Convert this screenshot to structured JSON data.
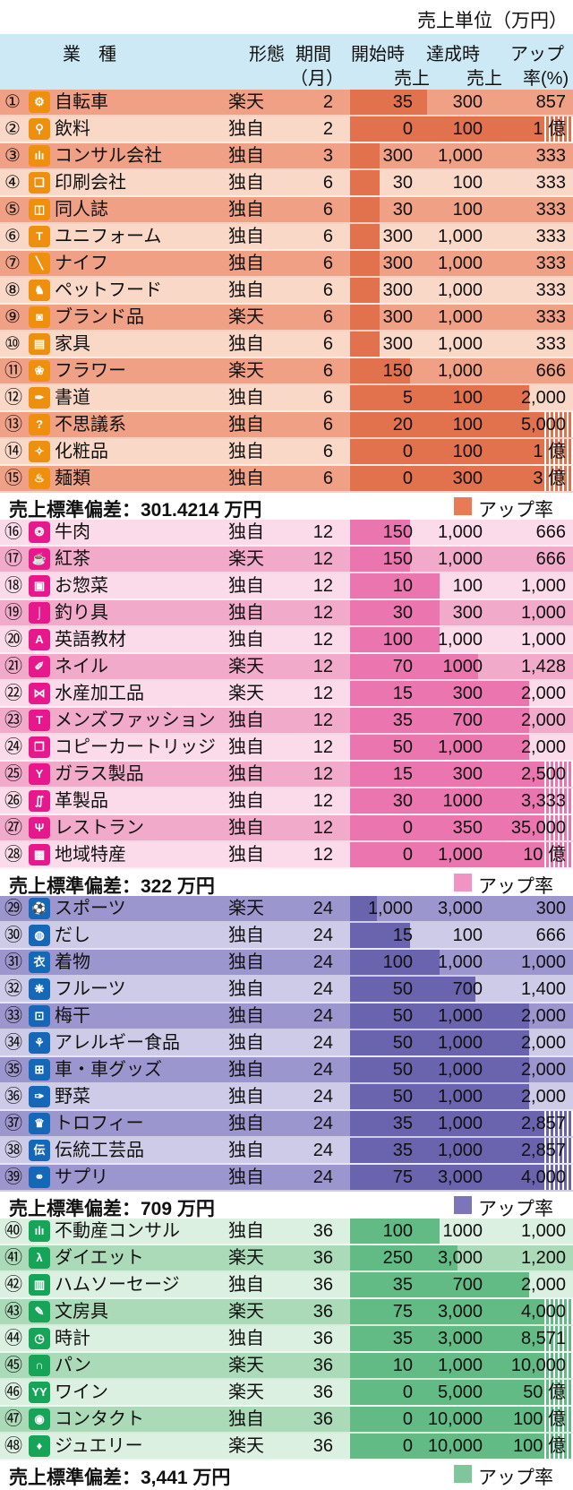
{
  "header": {
    "industry": "業　種",
    "format": "形態",
    "period_l1": "期間",
    "period_l2": "（月）",
    "start_l1": "開始時",
    "start_l2": "売上",
    "achieved_l1": "達成時",
    "achieved_l2": "売上",
    "rate_l1": "アップ",
    "rate_l2": "率(%)"
  },
  "chart_data": {
    "type": "table",
    "unit_note": "売上単位（万円）",
    "legend_label": "アップ率",
    "columns": [
      "業種",
      "形態",
      "期間（月）",
      "開始時売上",
      "達成時売上",
      "アップ率(%)"
    ],
    "groups": [
      {
        "period_months": "2-6",
        "colors": {
          "row_dark": "#EFA085",
          "row_light": "#FAD8C7",
          "bar": "#E2714E",
          "icon": "#EE8F0E",
          "legend": "#E87B55"
        },
        "stddev": "売上標準偏差：301.4214 万円",
        "rows": [
          {
            "no": "①",
            "icon": "bicycle-icon",
            "glyph": "⚙",
            "industry": "自転車",
            "format": "楽天",
            "period": "2",
            "start": "35",
            "achieved": "300",
            "rate": "857",
            "rate_num": 857
          },
          {
            "no": "②",
            "icon": "drink-glass-icon",
            "glyph": "⚲",
            "industry": "飲料",
            "format": "独自",
            "period": "2",
            "start": "0",
            "achieved": "100",
            "rate": "1 億",
            "rate_num": 100000000
          },
          {
            "no": "③",
            "icon": "bar-chart-icon",
            "glyph": "ılı",
            "industry": "コンサル会社",
            "format": "独自",
            "period": "3",
            "start": "300",
            "achieved": "1,000",
            "rate": "333",
            "rate_num": 333
          },
          {
            "no": "④",
            "icon": "printer-icon",
            "glyph": "❏",
            "industry": "印刷会社",
            "format": "独自",
            "period": "6",
            "start": "30",
            "achieved": "100",
            "rate": "333",
            "rate_num": 333
          },
          {
            "no": "⑤",
            "icon": "book-icon",
            "glyph": "◫",
            "industry": "同人誌",
            "format": "独自",
            "period": "6",
            "start": "30",
            "achieved": "100",
            "rate": "333",
            "rate_num": 333
          },
          {
            "no": "⑥",
            "icon": "shirt-icon",
            "glyph": "T",
            "industry": "ユニフォーム",
            "format": "独自",
            "period": "6",
            "start": "300",
            "achieved": "1,000",
            "rate": "333",
            "rate_num": 333
          },
          {
            "no": "⑦",
            "icon": "knife-icon",
            "glyph": "╲",
            "industry": "ナイフ",
            "format": "独自",
            "period": "6",
            "start": "300",
            "achieved": "1,000",
            "rate": "333",
            "rate_num": 333
          },
          {
            "no": "⑧",
            "icon": "dog-icon",
            "glyph": "♞",
            "industry": "ペットフード",
            "format": "独自",
            "period": "6",
            "start": "300",
            "achieved": "1,000",
            "rate": "333",
            "rate_num": 333
          },
          {
            "no": "⑨",
            "icon": "handbag-icon",
            "glyph": "◙",
            "industry": "ブランド品",
            "format": "楽天",
            "period": "6",
            "start": "300",
            "achieved": "1,000",
            "rate": "333",
            "rate_num": 333
          },
          {
            "no": "⑩",
            "icon": "furniture-icon",
            "glyph": "▤",
            "industry": "家具",
            "format": "独自",
            "period": "6",
            "start": "300",
            "achieved": "1,000",
            "rate": "333",
            "rate_num": 333
          },
          {
            "no": "⑪",
            "icon": "flower-icon",
            "glyph": "❀",
            "industry": "フラワー",
            "format": "楽天",
            "period": "6",
            "start": "150",
            "achieved": "1,000",
            "rate": "666",
            "rate_num": 666
          },
          {
            "no": "⑫",
            "icon": "brush-icon",
            "glyph": "✒",
            "industry": "書道",
            "format": "独自",
            "period": "6",
            "start": "5",
            "achieved": "100",
            "rate": "2,000",
            "rate_num": 2000
          },
          {
            "no": "⑬",
            "icon": "question-icon",
            "glyph": "?",
            "industry": "不思議系",
            "format": "独自",
            "period": "6",
            "start": "20",
            "achieved": "100",
            "rate": "5,000",
            "rate_num": 5000
          },
          {
            "no": "⑭",
            "icon": "cosmetics-icon",
            "glyph": "✧",
            "industry": "化粧品",
            "format": "独自",
            "period": "6",
            "start": "0",
            "achieved": "100",
            "rate": "1 億",
            "rate_num": 100000000
          },
          {
            "no": "⑮",
            "icon": "noodles-icon",
            "glyph": "♨",
            "industry": "麺類",
            "format": "独自",
            "period": "6",
            "start": "0",
            "achieved": "300",
            "rate": "3 億",
            "rate_num": 300000000
          }
        ]
      },
      {
        "period_months": "12",
        "colors": {
          "row_dark": "#F2AACB",
          "row_light": "#FBDBE9",
          "bar": "#EB76AF",
          "icon": "#E7188B",
          "legend": "#F193C3"
        },
        "stddev": "売上標準偏差：322 万円",
        "rows": [
          {
            "no": "⑯",
            "icon": "meat-icon",
            "glyph": "❂",
            "industry": "牛肉",
            "format": "独自",
            "period": "12",
            "start": "150",
            "achieved": "1,000",
            "rate": "666",
            "rate_num": 666
          },
          {
            "no": "⑰",
            "icon": "tea-cup-icon",
            "glyph": "☕",
            "industry": "紅茶",
            "format": "楽天",
            "period": "12",
            "start": "150",
            "achieved": "1,000",
            "rate": "666",
            "rate_num": 666
          },
          {
            "no": "⑱",
            "icon": "dish-icon",
            "glyph": "▣",
            "industry": "お惣菜",
            "format": "独自",
            "period": "12",
            "start": "10",
            "achieved": "100",
            "rate": "1,000",
            "rate_num": 1000
          },
          {
            "no": "⑲",
            "icon": "fish-hook-icon",
            "glyph": "⌡",
            "industry": "釣り具",
            "format": "独自",
            "period": "12",
            "start": "30",
            "achieved": "300",
            "rate": "1,000",
            "rate_num": 1000
          },
          {
            "no": "⑳",
            "icon": "letter-a-icon",
            "glyph": "A",
            "industry": "英語教材",
            "format": "独自",
            "period": "12",
            "start": "100",
            "achieved": "1,000",
            "rate": "1,000",
            "rate_num": 1000
          },
          {
            "no": "㉑",
            "icon": "nail-icon",
            "glyph": "✐",
            "industry": "ネイル",
            "format": "楽天",
            "period": "12",
            "start": "70",
            "achieved": "1000",
            "rate": "1,428",
            "rate_num": 1428
          },
          {
            "no": "㉒",
            "icon": "fish-icon",
            "glyph": "⋈",
            "industry": "水産加工品",
            "format": "楽天",
            "period": "12",
            "start": "15",
            "achieved": "300",
            "rate": "2,000",
            "rate_num": 2000
          },
          {
            "no": "㉓",
            "icon": "menswear-icon",
            "glyph": "T",
            "industry": "メンズファッション",
            "format": "独自",
            "period": "12",
            "start": "35",
            "achieved": "700",
            "rate": "2,000",
            "rate_num": 2000
          },
          {
            "no": "㉔",
            "icon": "copy-cartridge-icon",
            "glyph": "❐",
            "industry": "コピーカートリッジ",
            "format": "独自",
            "period": "12",
            "start": "50",
            "achieved": "1,000",
            "rate": "2,000",
            "rate_num": 2000
          },
          {
            "no": "㉕",
            "icon": "glass-icon",
            "glyph": "Y",
            "industry": "ガラス製品",
            "format": "独自",
            "period": "12",
            "start": "15",
            "achieved": "300",
            "rate": "2,500",
            "rate_num": 2500
          },
          {
            "no": "㉖",
            "icon": "shoes-icon",
            "glyph": "∬",
            "industry": "革製品",
            "format": "独自",
            "period": "12",
            "start": "30",
            "achieved": "1000",
            "rate": "3,333",
            "rate_num": 3333
          },
          {
            "no": "㉗",
            "icon": "restaurant-icon",
            "glyph": "Ψ",
            "industry": "レストラン",
            "format": "独自",
            "period": "12",
            "start": "0",
            "achieved": "350",
            "rate": "35,000",
            "rate_num": 35000
          },
          {
            "no": "㉘",
            "icon": "local-specialty-icon",
            "glyph": "▩",
            "industry": "地域特産",
            "format": "独自",
            "period": "12",
            "start": "0",
            "achieved": "1,000",
            "rate": "10 億",
            "rate_num": 1000000000
          }
        ]
      },
      {
        "period_months": "24",
        "colors": {
          "row_dark": "#9C96CE",
          "row_light": "#CECBE8",
          "bar": "#6A63AD",
          "icon": "#1567B7",
          "legend": "#7C75BA"
        },
        "stddev": "売上標準偏差：709 万円",
        "rows": [
          {
            "no": "㉙",
            "icon": "soccer-ball-icon",
            "glyph": "⚽",
            "industry": "スポーツ",
            "format": "楽天",
            "period": "24",
            "start": "1,000",
            "achieved": "3,000",
            "rate": "300",
            "rate_num": 300
          },
          {
            "no": "㉚",
            "icon": "pot-icon",
            "glyph": "◍",
            "industry": "だし",
            "format": "独自",
            "period": "24",
            "start": "15",
            "achieved": "100",
            "rate": "666",
            "rate_num": 666
          },
          {
            "no": "㉛",
            "icon": "kimono-icon",
            "glyph": "衣",
            "industry": "着物",
            "format": "独自",
            "period": "24",
            "start": "100",
            "achieved": "1,000",
            "rate": "1,000",
            "rate_num": 1000
          },
          {
            "no": "㉜",
            "icon": "grapes-icon",
            "glyph": "❋",
            "industry": "フルーツ",
            "format": "独自",
            "period": "24",
            "start": "50",
            "achieved": "700",
            "rate": "1,400",
            "rate_num": 1400
          },
          {
            "no": "㉝",
            "icon": "jar-icon",
            "glyph": "⊡",
            "industry": "梅干",
            "format": "独自",
            "period": "24",
            "start": "50",
            "achieved": "1,000",
            "rate": "2,000",
            "rate_num": 2000
          },
          {
            "no": "㉞",
            "icon": "wheat-icon",
            "glyph": "⚘",
            "industry": "アレルギー食品",
            "format": "独自",
            "period": "24",
            "start": "50",
            "achieved": "1,000",
            "rate": "2,000",
            "rate_num": 2000
          },
          {
            "no": "㉟",
            "icon": "car-icon",
            "glyph": "⊞",
            "industry": "車・車グッズ",
            "format": "独自",
            "period": "24",
            "start": "50",
            "achieved": "1,000",
            "rate": "2,000",
            "rate_num": 2000
          },
          {
            "no": "㊱",
            "icon": "carrot-icon",
            "glyph": "✑",
            "industry": "野菜",
            "format": "独自",
            "period": "24",
            "start": "50",
            "achieved": "1,000",
            "rate": "2,000",
            "rate_num": 2000
          },
          {
            "no": "㊲",
            "icon": "trophy-icon",
            "glyph": "♛",
            "industry": "トロフィー",
            "format": "独自",
            "period": "24",
            "start": "35",
            "achieved": "1,000",
            "rate": "2,857",
            "rate_num": 2857
          },
          {
            "no": "㊳",
            "icon": "traditional-craft-icon",
            "glyph": "伝",
            "industry": "伝統工芸品",
            "format": "独自",
            "period": "24",
            "start": "35",
            "achieved": "1,000",
            "rate": "2,857",
            "rate_num": 2857
          },
          {
            "no": "㊴",
            "icon": "pills-icon",
            "glyph": "⚭",
            "industry": "サプリ",
            "format": "独自",
            "period": "24",
            "start": "75",
            "achieved": "3,000",
            "rate": "4,000",
            "rate_num": 4000
          }
        ]
      },
      {
        "period_months": "36",
        "colors": {
          "row_dark": "#AADAB8",
          "row_light": "#DBF0E1",
          "bar": "#62BA85",
          "icon": "#16A458",
          "legend": "#7FC79B"
        },
        "stddev": "売上標準偏差：3,441 万円",
        "rows": [
          {
            "no": "㊵",
            "icon": "bar-chart-icon",
            "glyph": "ılı",
            "industry": "不動産コンサル",
            "format": "独自",
            "period": "36",
            "start": "100",
            "achieved": "1000",
            "rate": "1,000",
            "rate_num": 1000
          },
          {
            "no": "㊶",
            "icon": "runner-icon",
            "glyph": "λ",
            "industry": "ダイエット",
            "format": "楽天",
            "period": "36",
            "start": "250",
            "achieved": "3,000",
            "rate": "1,200",
            "rate_num": 1200
          },
          {
            "no": "㊷",
            "icon": "ham-icon",
            "glyph": "▥",
            "industry": "ハムソーセージ",
            "format": "独自",
            "period": "36",
            "start": "35",
            "achieved": "700",
            "rate": "2,000",
            "rate_num": 2000
          },
          {
            "no": "㊸",
            "icon": "pencil-icon",
            "glyph": "✎",
            "industry": "文房具",
            "format": "楽天",
            "period": "36",
            "start": "75",
            "achieved": "3,000",
            "rate": "4,000",
            "rate_num": 4000
          },
          {
            "no": "㊹",
            "icon": "clock-icon",
            "glyph": "◷",
            "industry": "時計",
            "format": "独自",
            "period": "36",
            "start": "35",
            "achieved": "3,000",
            "rate": "8,571",
            "rate_num": 8571
          },
          {
            "no": "㊺",
            "icon": "bread-icon",
            "glyph": "∩",
            "industry": "パン",
            "format": "楽天",
            "period": "36",
            "start": "10",
            "achieved": "1,000",
            "rate": "10,000",
            "rate_num": 10000
          },
          {
            "no": "㊻",
            "icon": "wine-glasses-icon",
            "glyph": "YY",
            "industry": "ワイン",
            "format": "楽天",
            "period": "36",
            "start": "0",
            "achieved": "5,000",
            "rate": "50 億",
            "rate_num": 5000000000
          },
          {
            "no": "㊼",
            "icon": "eye-icon",
            "glyph": "◉",
            "industry": "コンタクト",
            "format": "独自",
            "period": "36",
            "start": "0",
            "achieved": "10,000",
            "rate": "100 億",
            "rate_num": 10000000000
          },
          {
            "no": "㊽",
            "icon": "diamond-icon",
            "glyph": "♦",
            "industry": "ジュエリー",
            "format": "楽天",
            "period": "36",
            "start": "0",
            "achieved": "10,000",
            "rate": "100 億",
            "rate_num": 10000000000
          }
        ]
      }
    ]
  }
}
